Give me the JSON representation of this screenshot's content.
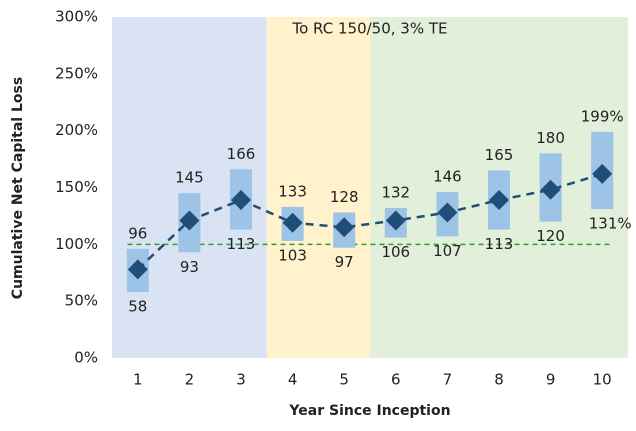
{
  "chart_data": {
    "type": "range-bar",
    "annotation": "To RC 150/50, 3% TE",
    "x_label": "Year Since Inception",
    "y_label": "Cumulative Net Capital Loss",
    "categories": [
      "1",
      "2",
      "3",
      "4",
      "5",
      "6",
      "7",
      "8",
      "9",
      "10"
    ],
    "high": {
      "values": [
        96,
        145,
        166,
        133,
        128,
        132,
        146,
        165,
        180,
        199
      ],
      "value_labels": [
        "96",
        "145",
        "166",
        "133",
        "128",
        "132",
        "146",
        "165",
        "180",
        "199%"
      ]
    },
    "low": {
      "values": [
        58,
        93,
        113,
        103,
        97,
        106,
        107,
        113,
        120,
        131
      ],
      "value_labels": [
        "58",
        "93",
        "113",
        "103",
        "97",
        "106",
        "107",
        "113",
        "120",
        "131%"
      ]
    },
    "median": {
      "values": [
        78,
        121,
        139,
        119,
        115,
        121,
        128,
        139,
        148,
        162
      ],
      "color": "#1f4e79"
    },
    "bar_color": "#9dc3e6",
    "reference_line": {
      "value": 100,
      "color": "#2ca02c"
    },
    "regions": [
      {
        "from": "1",
        "to": "3",
        "color": "#dae3f3"
      },
      {
        "from": "4",
        "to": "5",
        "color": "#fff2cc"
      },
      {
        "from": "6",
        "to": "10",
        "color": "#e2efda"
      }
    ],
    "ylim": [
      0,
      300
    ],
    "yticks": [
      {
        "value": 0,
        "label": "0%"
      },
      {
        "value": 50,
        "label": "50%"
      },
      {
        "value": 100,
        "label": "100%"
      },
      {
        "value": 150,
        "label": "150%"
      },
      {
        "value": 200,
        "label": "200%"
      },
      {
        "value": 250,
        "label": "250%"
      },
      {
        "value": 300,
        "label": "300%"
      }
    ]
  }
}
